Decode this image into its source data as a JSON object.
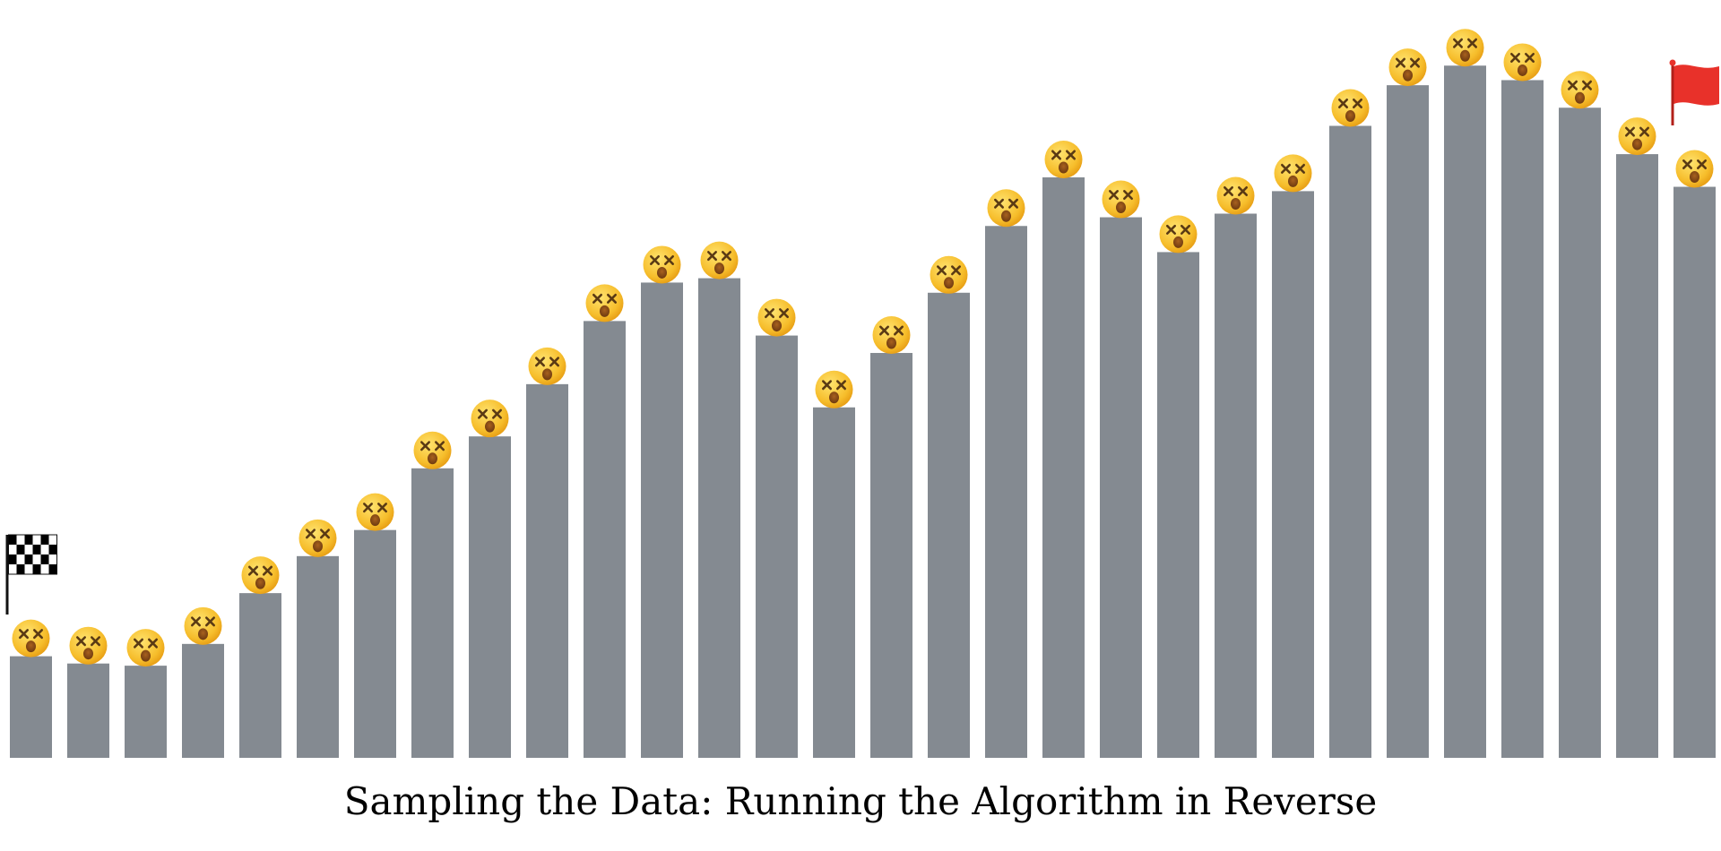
{
  "caption": "Sampling the Data: Running the Algorithm in Reverse",
  "chart_data": {
    "type": "bar",
    "title": "",
    "xlabel": "",
    "ylabel": "",
    "ylim": [
      0,
      100
    ],
    "grid": false,
    "legend": "none",
    "values": [
      14.0,
      13.0,
      12.7,
      15.7,
      22.7,
      27.8,
      31.4,
      39.9,
      44.3,
      51.5,
      60.2,
      65.5,
      66.1,
      58.2,
      48.3,
      55.8,
      64.1,
      73.3,
      80.0,
      74.5,
      69.7,
      75.0,
      78.1,
      87.1,
      92.7,
      95.4,
      93.4,
      89.6,
      83.2,
      78.7
    ],
    "bar_color": "#848a91",
    "marker_icon": "dizzy-face-emoji",
    "start_icon": "checkered-flag-icon",
    "end_icon": "red-flag-icon",
    "start_flag_colors": [
      "#000000",
      "#ffffff"
    ],
    "end_flag_color": "#e8312a"
  }
}
